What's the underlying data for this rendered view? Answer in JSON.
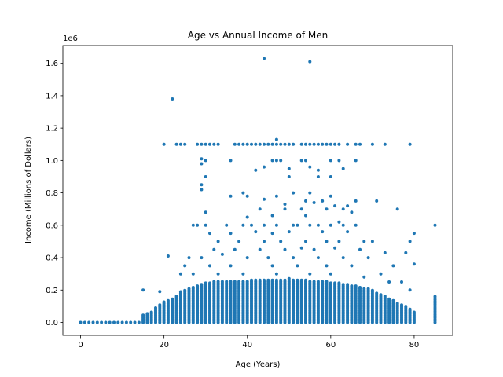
{
  "chart_data": {
    "type": "scatter",
    "title": "Age vs Annual Income of Men",
    "xlabel": "Age (Years)",
    "ylabel": "Income (Millions of Dollars)",
    "offset_text": "1e6",
    "xlim": [
      -4.25,
      89.25
    ],
    "ylim": [
      -80000,
      1710000
    ],
    "xticks": [
      0,
      20,
      40,
      60,
      80
    ],
    "xtick_labels": [
      "0",
      "20",
      "40",
      "60",
      "80"
    ],
    "yticks": [
      0,
      200000,
      400000,
      600000,
      800000,
      1000000,
      1200000,
      1400000,
      1600000
    ],
    "ytick_labels": [
      "0.0",
      "0.2",
      "0.4",
      "0.6",
      "0.8",
      "1.0",
      "1.2",
      "1.4",
      "1.6"
    ],
    "grid": false,
    "marker_color": "#1f77b4",
    "upper_envelope": [
      [
        0,
        0
      ],
      [
        14,
        0
      ],
      [
        15,
        50000
      ],
      [
        16,
        60000
      ],
      [
        17,
        70000
      ],
      [
        18,
        90000
      ],
      [
        19,
        110000
      ],
      [
        20,
        130000
      ],
      [
        21,
        140000
      ],
      [
        22,
        150000
      ],
      [
        23,
        170000
      ],
      [
        24,
        190000
      ],
      [
        25,
        200000
      ],
      [
        26,
        210000
      ],
      [
        27,
        220000
      ],
      [
        28,
        230000
      ],
      [
        29,
        240000
      ],
      [
        30,
        250000
      ],
      [
        40,
        260000
      ],
      [
        50,
        270000
      ],
      [
        60,
        250000
      ],
      [
        66,
        230000
      ],
      [
        70,
        200000
      ],
      [
        74,
        150000
      ],
      [
        78,
        100000
      ],
      [
        80,
        70000
      ]
    ],
    "points": [
      [
        44,
        1630000
      ],
      [
        55,
        1610000
      ],
      [
        22,
        1380000
      ],
      [
        20,
        1100000
      ],
      [
        23,
        1100000
      ],
      [
        24,
        1100000
      ],
      [
        25,
        1100000
      ],
      [
        28,
        1100000
      ],
      [
        29,
        1100000
      ],
      [
        30,
        1100000
      ],
      [
        31,
        1100000
      ],
      [
        32,
        1100000
      ],
      [
        33,
        1100000
      ],
      [
        37,
        1100000
      ],
      [
        38,
        1100000
      ],
      [
        39,
        1100000
      ],
      [
        40,
        1100000
      ],
      [
        41,
        1100000
      ],
      [
        42,
        1100000
      ],
      [
        43,
        1100000
      ],
      [
        44,
        1100000
      ],
      [
        45,
        1100000
      ],
      [
        46,
        1100000
      ],
      [
        47,
        1100000
      ],
      [
        48,
        1100000
      ],
      [
        49,
        1100000
      ],
      [
        50,
        1100000
      ],
      [
        51,
        1100000
      ],
      [
        53,
        1100000
      ],
      [
        54,
        1100000
      ],
      [
        55,
        1100000
      ],
      [
        56,
        1100000
      ],
      [
        57,
        1100000
      ],
      [
        58,
        1100000
      ],
      [
        59,
        1100000
      ],
      [
        60,
        1100000
      ],
      [
        61,
        1100000
      ],
      [
        62,
        1100000
      ],
      [
        64,
        1100000
      ],
      [
        66,
        1100000
      ],
      [
        67,
        1100000
      ],
      [
        70,
        1100000
      ],
      [
        73,
        1100000
      ],
      [
        79,
        1100000
      ],
      [
        47,
        1130000
      ],
      [
        29,
        1010000
      ],
      [
        30,
        1000000
      ],
      [
        46,
        1000000
      ],
      [
        47,
        1000000
      ],
      [
        48,
        1000000
      ],
      [
        53,
        1000000
      ],
      [
        54,
        1000000
      ],
      [
        60,
        1000000
      ],
      [
        62,
        1000000
      ],
      [
        66,
        1000000
      ],
      [
        36,
        1000000
      ],
      [
        29,
        980000
      ],
      [
        44,
        960000
      ],
      [
        50,
        950000
      ],
      [
        55,
        960000
      ],
      [
        42,
        940000
      ],
      [
        57,
        940000
      ],
      [
        63,
        950000
      ],
      [
        30,
        900000
      ],
      [
        50,
        900000
      ],
      [
        57,
        900000
      ],
      [
        60,
        900000
      ],
      [
        29,
        850000
      ],
      [
        29,
        820000
      ],
      [
        39,
        800000
      ],
      [
        40,
        780000
      ],
      [
        51,
        800000
      ],
      [
        55,
        800000
      ],
      [
        36,
        780000
      ],
      [
        60,
        780000
      ],
      [
        47,
        780000
      ],
      [
        54,
        750000
      ],
      [
        56,
        740000
      ],
      [
        61,
        720000
      ],
      [
        71,
        750000
      ],
      [
        44,
        760000
      ],
      [
        49,
        730000
      ],
      [
        58,
        750000
      ],
      [
        64,
        720000
      ],
      [
        66,
        750000
      ],
      [
        30,
        680000
      ],
      [
        43,
        700000
      ],
      [
        49,
        700000
      ],
      [
        53,
        700000
      ],
      [
        59,
        700000
      ],
      [
        63,
        700000
      ],
      [
        76,
        700000
      ],
      [
        40,
        650000
      ],
      [
        46,
        660000
      ],
      [
        54,
        660000
      ],
      [
        62,
        620000
      ],
      [
        65,
        680000
      ],
      [
        27,
        600000
      ],
      [
        28,
        600000
      ],
      [
        30,
        600000
      ],
      [
        35,
        600000
      ],
      [
        39,
        600000
      ],
      [
        41,
        600000
      ],
      [
        44,
        600000
      ],
      [
        47,
        600000
      ],
      [
        51,
        600000
      ],
      [
        52,
        600000
      ],
      [
        55,
        600000
      ],
      [
        57,
        600000
      ],
      [
        60,
        600000
      ],
      [
        63,
        600000
      ],
      [
        66,
        600000
      ],
      [
        85,
        600000
      ],
      [
        21,
        410000
      ],
      [
        19,
        190000
      ],
      [
        15,
        200000
      ],
      [
        31,
        550000
      ],
      [
        36,
        550000
      ],
      [
        42,
        560000
      ],
      [
        46,
        550000
      ],
      [
        50,
        560000
      ],
      [
        58,
        560000
      ],
      [
        64,
        560000
      ],
      [
        80,
        550000
      ],
      [
        33,
        500000
      ],
      [
        38,
        500000
      ],
      [
        44,
        500000
      ],
      [
        48,
        500000
      ],
      [
        54,
        500000
      ],
      [
        59,
        500000
      ],
      [
        62,
        500000
      ],
      [
        68,
        500000
      ],
      [
        70,
        500000
      ],
      [
        79,
        500000
      ],
      [
        25,
        350000
      ],
      [
        26,
        400000
      ],
      [
        32,
        450000
      ],
      [
        37,
        450000
      ],
      [
        43,
        450000
      ],
      [
        49,
        450000
      ],
      [
        53,
        460000
      ],
      [
        56,
        450000
      ],
      [
        61,
        460000
      ],
      [
        67,
        450000
      ],
      [
        73,
        430000
      ],
      [
        78,
        430000
      ],
      [
        29,
        400000
      ],
      [
        34,
        420000
      ],
      [
        40,
        400000
      ],
      [
        45,
        400000
      ],
      [
        51,
        400000
      ],
      [
        57,
        400000
      ],
      [
        63,
        400000
      ],
      [
        69,
        400000
      ],
      [
        75,
        350000
      ],
      [
        80,
        360000
      ],
      [
        24,
        300000
      ],
      [
        31,
        350000
      ],
      [
        36,
        350000
      ],
      [
        46,
        350000
      ],
      [
        52,
        350000
      ],
      [
        59,
        350000
      ],
      [
        65,
        350000
      ],
      [
        72,
        300000
      ],
      [
        77,
        250000
      ],
      [
        27,
        300000
      ],
      [
        33,
        300000
      ],
      [
        39,
        300000
      ],
      [
        47,
        300000
      ],
      [
        55,
        300000
      ],
      [
        60,
        300000
      ],
      [
        68,
        280000
      ],
      [
        74,
        250000
      ],
      [
        79,
        200000
      ],
      [
        85,
        160000
      ],
      [
        85,
        150000
      ],
      [
        85,
        140000
      ],
      [
        85,
        130000
      ],
      [
        85,
        120000
      ],
      [
        85,
        110000
      ],
      [
        85,
        100000
      ],
      [
        85,
        90000
      ],
      [
        85,
        80000
      ],
      [
        85,
        70000
      ],
      [
        85,
        60000
      ],
      [
        85,
        50000
      ],
      [
        85,
        40000
      ],
      [
        85,
        30000
      ],
      [
        85,
        20000
      ],
      [
        85,
        10000
      ],
      [
        85,
        0
      ],
      [
        0,
        0
      ],
      [
        1,
        0
      ],
      [
        2,
        0
      ],
      [
        3,
        0
      ],
      [
        4,
        0
      ],
      [
        5,
        0
      ],
      [
        6,
        0
      ],
      [
        7,
        0
      ],
      [
        8,
        0
      ],
      [
        9,
        0
      ],
      [
        10,
        0
      ],
      [
        11,
        0
      ],
      [
        12,
        0
      ],
      [
        13,
        0
      ],
      [
        14,
        0
      ]
    ]
  }
}
